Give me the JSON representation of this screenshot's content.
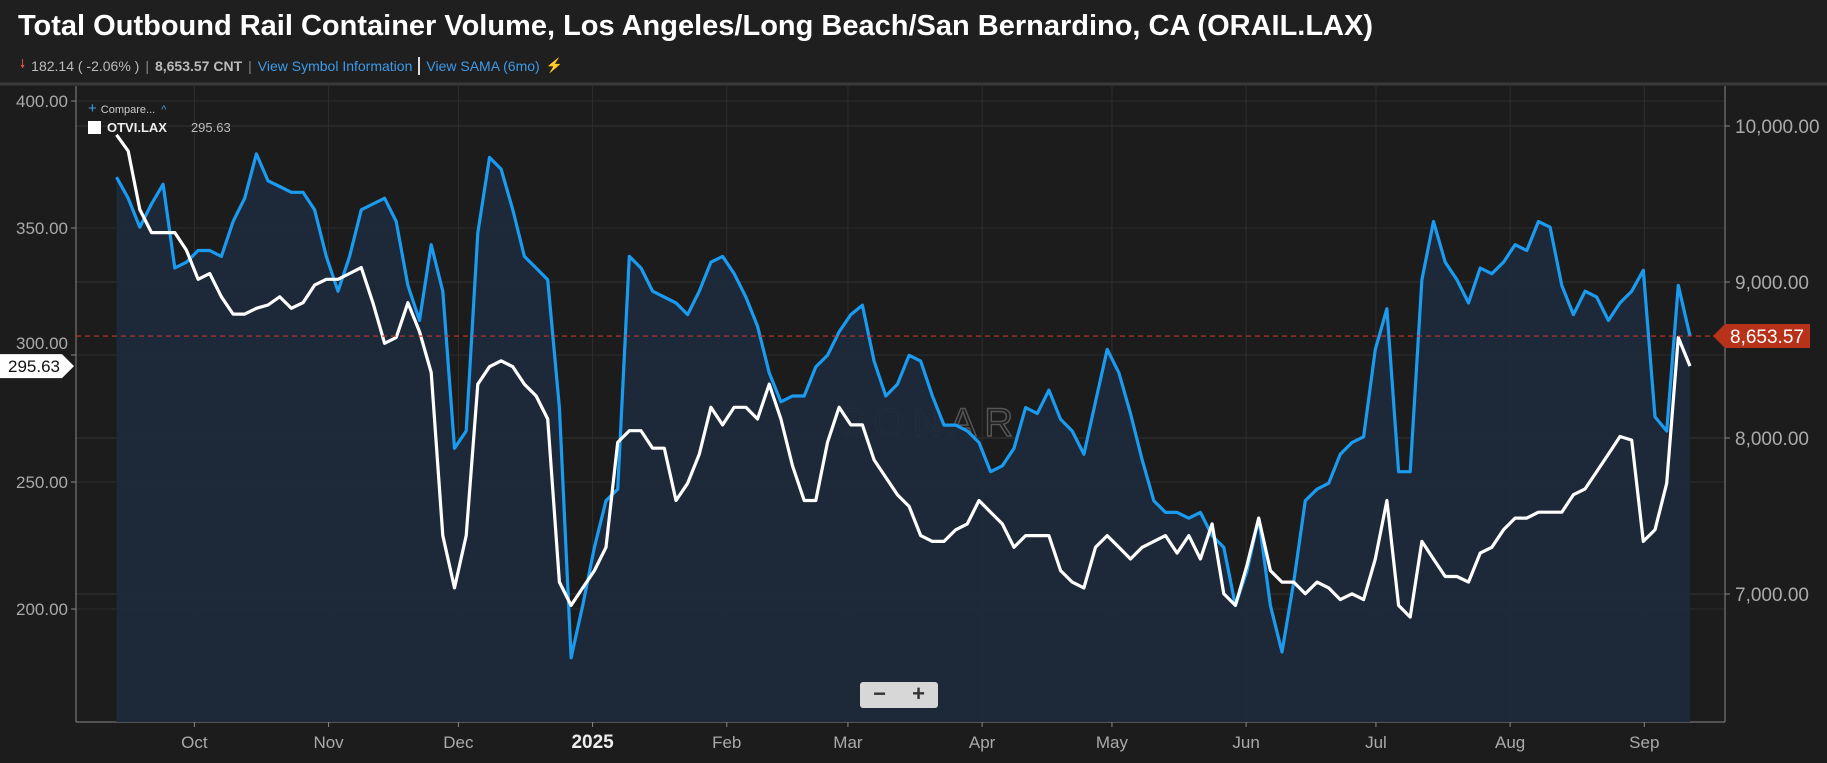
{
  "header": {
    "title": "Total Outbound Rail Container Volume, Los Angeles/Long Beach/San Bernardino, CA (ORAIL.LAX)",
    "change": "182.14 ( -2.06% )",
    "value": "8,653.57 CNT",
    "link_symbol_info": "View Symbol Information",
    "link_sama": "View SAMA (6mo)"
  },
  "legend": {
    "compare_label": "Compare...",
    "series_label": "OTVI.LAX",
    "series_value": "295.63"
  },
  "watermark": "SONAR",
  "zoom": {
    "minus": "−",
    "plus": "+"
  },
  "colors": {
    "primary": "#1a9bf0",
    "secondary": "#ffffff",
    "last_value_badge": "#b8321a",
    "area": "#1e2a3a"
  },
  "chart_data": {
    "type": "line",
    "title": "Total Outbound Rail Container Volume, Los Angeles/Long Beach/San Bernardino, CA (ORAIL.LAX)",
    "x_start": "2024-09-13",
    "x_step_days": 2.693,
    "x_tick_labels": [
      {
        "date": "2024-10-01",
        "label": "Oct"
      },
      {
        "date": "2024-11-01",
        "label": "Nov"
      },
      {
        "date": "2024-12-01",
        "label": "Dec"
      },
      {
        "date": "2025-01-01",
        "label": "2025"
      },
      {
        "date": "2025-02-01",
        "label": "Feb"
      },
      {
        "date": "2025-03-01",
        "label": "Mar"
      },
      {
        "date": "2025-04-01",
        "label": "Apr"
      },
      {
        "date": "2025-05-01",
        "label": "May"
      },
      {
        "date": "2025-06-01",
        "label": "Jun"
      },
      {
        "date": "2025-07-01",
        "label": "Jul"
      },
      {
        "date": "2025-08-01",
        "label": "Aug"
      },
      {
        "date": "2025-09-01",
        "label": "Sep"
      }
    ],
    "left_axis": {
      "ticks": [
        "400.00",
        "350.00",
        "300.00",
        "250.00",
        "200.00"
      ],
      "tick_values": [
        400,
        350,
        300,
        250,
        200
      ],
      "range": [
        160,
        406
      ]
    },
    "right_axis": {
      "ticks": [
        "10,000.00",
        "9,000.00",
        "8,000.00",
        "7,000.00"
      ],
      "tick_values": [
        10000,
        9000,
        8000,
        7000
      ],
      "range": [
        6250,
        10160
      ]
    },
    "last_value_right": "8,653.57",
    "last_value_left": "295.63",
    "series": [
      {
        "name": "ORAIL.LAX",
        "axis": "right",
        "area": true,
        "values": [
          9672,
          9537,
          9351,
          9500,
          9627,
          9090,
          9127,
          9202,
          9202,
          9164,
          9388,
          9537,
          9821,
          9649,
          9612,
          9575,
          9575,
          9463,
          9164,
          8941,
          9164,
          9463,
          9500,
          9537,
          9388,
          8978,
          8754,
          9239,
          8941,
          7934,
          8045,
          9314,
          9799,
          9724,
          9463,
          9164,
          9090,
          9015,
          8195,
          6591,
          6926,
          7299,
          7598,
          7672,
          9164,
          9090,
          8941,
          8903,
          8866,
          8791,
          8941,
          9127,
          9164,
          9053,
          8903,
          8717,
          8418,
          8232,
          8269,
          8269,
          8456,
          8530,
          8680,
          8791,
          8851,
          8493,
          8269,
          8344,
          8530,
          8493,
          8269,
          8083,
          8083,
          8045,
          7971,
          7784,
          7822,
          7934,
          8195,
          8157,
          8307,
          8120,
          8045,
          7896,
          8232,
          8568,
          8418,
          8157,
          7859,
          7598,
          7523,
          7523,
          7486,
          7523,
          7374,
          7299,
          6926,
          7150,
          7486,
          6926,
          6628,
          7076,
          7598,
          7672,
          7710,
          7896,
          7971,
          8008,
          8568,
          8829,
          7784,
          7784,
          9015,
          9388,
          9127,
          9015,
          8866,
          9090,
          9053,
          9127,
          9239,
          9202,
          9388,
          9351,
          8978,
          8791,
          8941,
          8903,
          8754,
          8866,
          8941,
          9075,
          8135,
          8045,
          8978,
          8653.57
        ]
      },
      {
        "name": "OTVI.LAX",
        "axis": "left",
        "area": false,
        "values": [
          386.7,
          380.3,
          357.3,
          348.2,
          348.2,
          348.2,
          341.3,
          329.8,
          332.1,
          322.9,
          316.1,
          316.1,
          318.4,
          319.7,
          322.9,
          318.4,
          320.6,
          327.5,
          329.8,
          329.8,
          332.1,
          334.4,
          320.6,
          304.6,
          306.9,
          320.6,
          309.2,
          293.1,
          228.9,
          208.3,
          228.9,
          288.5,
          295.4,
          297.7,
          295.4,
          288.5,
          283.9,
          274.8,
          210.6,
          201.4,
          208.3,
          215.1,
          224.3,
          265.6,
          270.2,
          270.2,
          263.3,
          263.3,
          242.7,
          249.5,
          261,
          279.4,
          272.5,
          279.4,
          279.4,
          274.8,
          288.5,
          274.8,
          256.4,
          242.7,
          242.7,
          265.6,
          279.4,
          272.5,
          272.5,
          258.7,
          251.8,
          245,
          240.4,
          228.9,
          226.6,
          226.6,
          231.2,
          233.5,
          242.7,
          238.1,
          233.5,
          224.3,
          228.9,
          228.9,
          228.9,
          215.1,
          210.6,
          208.3,
          224.3,
          228.9,
          224.3,
          219.7,
          224.3,
          226.6,
          228.9,
          222,
          228.9,
          219.7,
          233.5,
          206,
          201.4,
          217.4,
          235.8,
          215.1,
          210.6,
          210.6,
          206,
          210.6,
          208.3,
          203.7,
          206,
          203.7,
          219.7,
          242.7,
          201.4,
          196.8,
          226.6,
          219.7,
          212.8,
          212.8,
          210.6,
          222,
          224.3,
          231.2,
          235.8,
          235.8,
          238.1,
          238.1,
          238.1,
          245,
          247.3,
          254.1,
          261,
          267.9,
          266.5,
          226.6,
          231.2,
          249.5,
          306.9,
          295.63
        ]
      }
    ],
    "grid": true,
    "legend_position": "top-left"
  }
}
